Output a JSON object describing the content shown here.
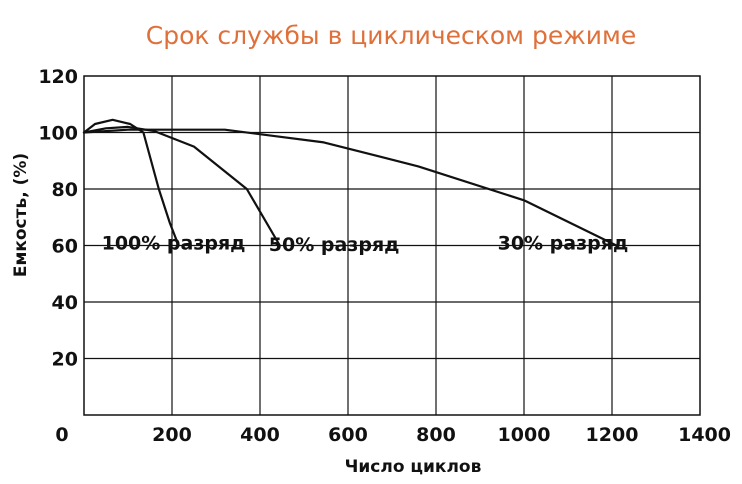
{
  "chart_data": {
    "type": "line",
    "title": "Срок службы в циклическом режиме",
    "xlabel": "Число циклов",
    "ylabel": "Емкость, (%)",
    "xlim": [
      0,
      1400
    ],
    "ylim": [
      0,
      120
    ],
    "x_ticks": [
      0,
      200,
      400,
      600,
      800,
      1000,
      1200,
      1400
    ],
    "y_ticks": [
      0,
      20,
      40,
      60,
      80,
      100,
      120
    ],
    "x_tick_labels": [
      "0",
      "200",
      "400",
      "600",
      "800",
      "1000",
      "1200",
      "1400"
    ],
    "y_tick_labels": [
      "0",
      "20",
      "40",
      "60",
      "80",
      "100",
      "120"
    ],
    "grid": true,
    "series": [
      {
        "name": "100% разряд",
        "label_at": [
          40,
          58.5
        ],
        "points": [
          [
            0,
            100
          ],
          [
            25,
            103
          ],
          [
            65,
            104.5
          ],
          [
            105,
            103
          ],
          [
            135,
            100
          ],
          [
            170,
            80
          ],
          [
            195,
            68
          ],
          [
            215,
            60
          ]
        ]
      },
      {
        "name": "50% разряд",
        "label_at": [
          420,
          58
        ],
        "points": [
          [
            0,
            100
          ],
          [
            50,
            101.5
          ],
          [
            100,
            102
          ],
          [
            160,
            100.5
          ],
          [
            250,
            95
          ],
          [
            370,
            80
          ],
          [
            445,
            60
          ]
        ]
      },
      {
        "name": "30% разряд",
        "label_at": [
          940,
          58.5
        ],
        "points": [
          [
            0,
            100
          ],
          [
            100,
            101
          ],
          [
            320,
            101
          ],
          [
            545,
            96.5
          ],
          [
            760,
            88
          ],
          [
            1000,
            76
          ],
          [
            1210,
            60
          ]
        ]
      }
    ]
  }
}
